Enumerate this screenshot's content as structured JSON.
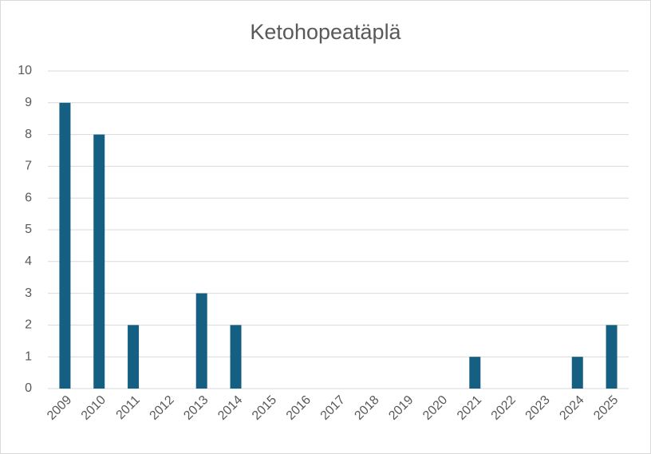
{
  "chart_data": {
    "type": "bar",
    "title": "Ketohopeatäplä",
    "categories": [
      "2009",
      "2010",
      "2011",
      "2012",
      "2013",
      "2014",
      "2015",
      "2016",
      "2017",
      "2018",
      "2019",
      "2020",
      "2021",
      "2022",
      "2023",
      "2024",
      "2025"
    ],
    "values": [
      9,
      8,
      2,
      0,
      3,
      2,
      0,
      0,
      0,
      0,
      0,
      0,
      1,
      0,
      0,
      1,
      2
    ],
    "color": "#156082",
    "ylim": [
      0,
      10
    ],
    "yticks": [
      0,
      1,
      2,
      3,
      4,
      5,
      6,
      7,
      8,
      9,
      10
    ],
    "grid": true
  }
}
